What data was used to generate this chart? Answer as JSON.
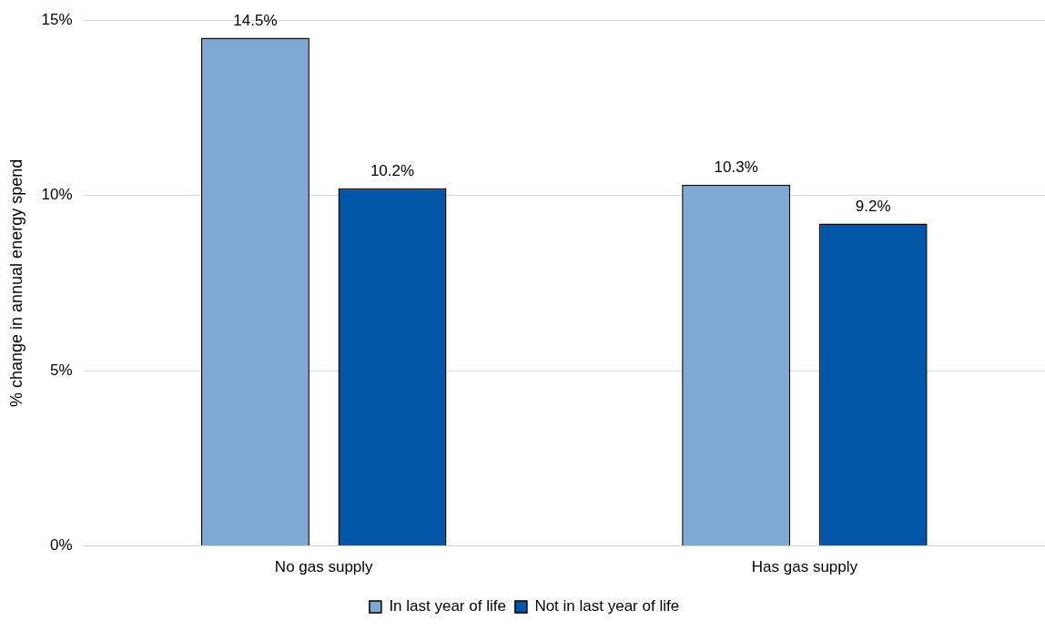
{
  "chart_data": {
    "type": "bar",
    "ylabel": "% change in annual energy spend",
    "categories": [
      "No gas supply",
      "Has gas supply"
    ],
    "series": [
      {
        "name": "In last year of life",
        "color": "#7fa9d4",
        "values": [
          14.5,
          10.3
        ],
        "value_labels": [
          "14.5%",
          "10.3%"
        ]
      },
      {
        "name": "Not in last year of life",
        "color": "#0055a6",
        "values": [
          10.2,
          9.2
        ],
        "value_labels": [
          "10.2%",
          "9.2%"
        ]
      }
    ],
    "ylim": [
      0,
      15
    ],
    "yticks": [
      {
        "value": 0,
        "label": "0%"
      },
      {
        "value": 5,
        "label": "5%"
      },
      {
        "value": 10,
        "label": "10%"
      },
      {
        "value": 15,
        "label": "15%"
      }
    ],
    "grid": "y",
    "legend": "bottom"
  }
}
